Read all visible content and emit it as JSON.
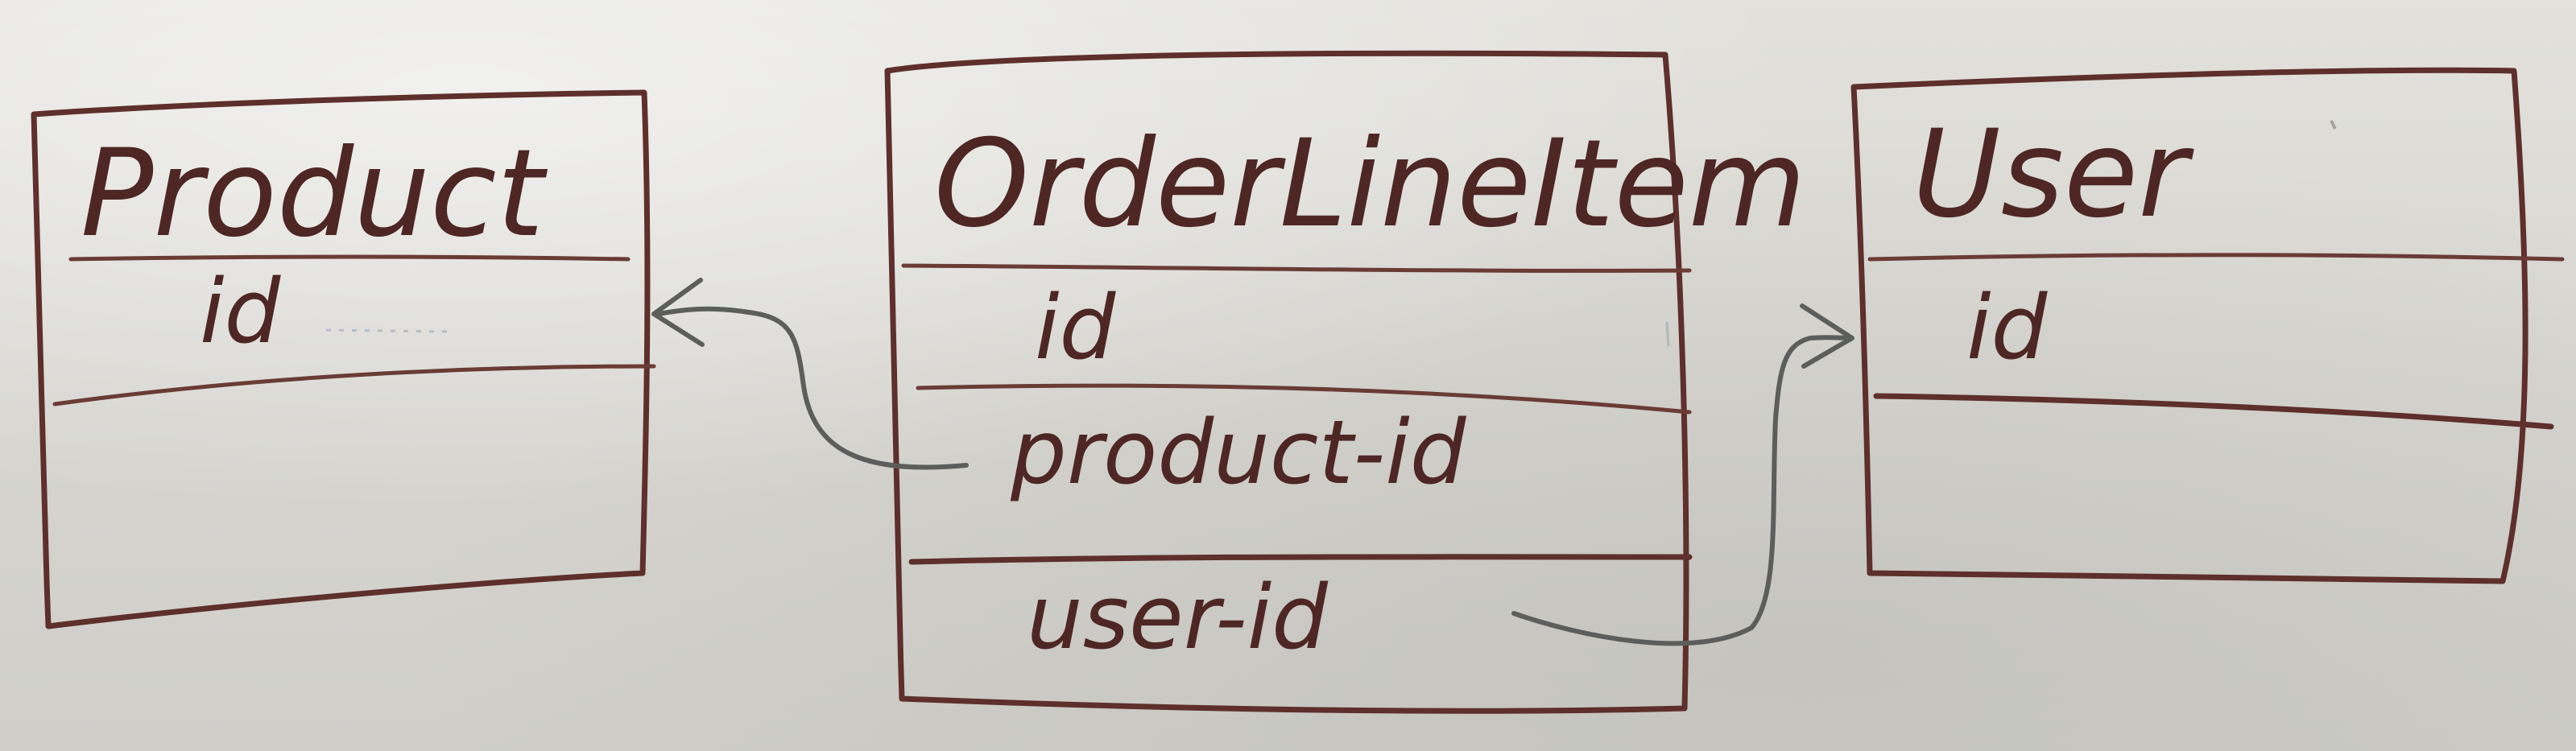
{
  "entities": [
    {
      "key": "product",
      "title": "Product",
      "fields": [
        "id"
      ]
    },
    {
      "key": "order_line_item",
      "title": "OrderLineItem",
      "fields": [
        "id",
        "product-id",
        "user-id"
      ]
    },
    {
      "key": "user",
      "title": "User",
      "fields": [
        "id"
      ]
    }
  ],
  "relations": [
    {
      "from": "OrderLineItem.product-id",
      "to": "Product"
    },
    {
      "from": "OrderLineItem.user-id",
      "to": "User"
    }
  ],
  "colors": {
    "ink": "#5e2f2b",
    "arrow": "#5c5e5b",
    "board": "#d9d8d3"
  }
}
